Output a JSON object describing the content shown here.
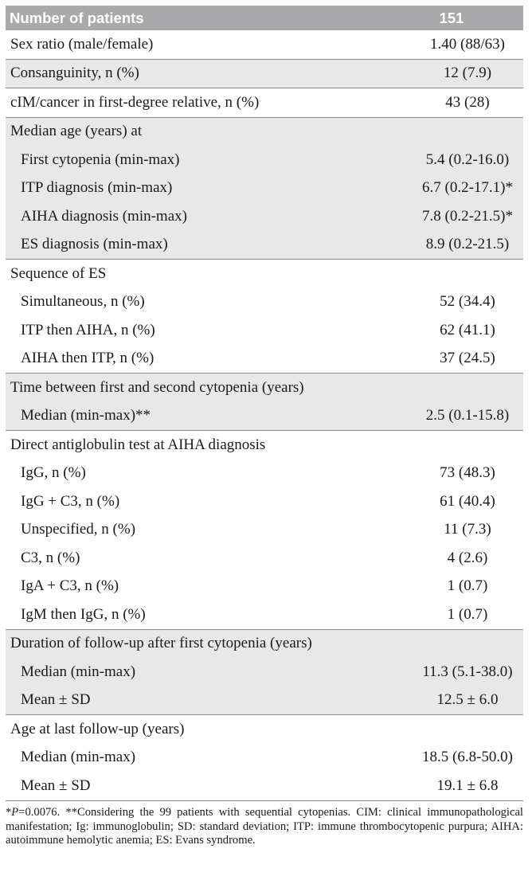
{
  "header": {
    "label": "Number of patients",
    "value": "151"
  },
  "rows": [
    {
      "label": "Sex ratio (male/female)",
      "value": "1.40 (88/63)"
    },
    {
      "label": "Consanguinity, n (%)",
      "value": "12 (7.9)"
    },
    {
      "label": "cIM/cancer in first-degree relative, n (%)",
      "value": "43 (28)"
    },
    {
      "label": "Median age (years) at",
      "value": ""
    },
    {
      "label": "First cytopenia (min-max)",
      "value": "5.4 (0.2-16.0)"
    },
    {
      "label": "ITP diagnosis (min-max)",
      "value": "6.7 (0.2-17.1)*"
    },
    {
      "label": "AIHA diagnosis (min-max)",
      "value": "7.8 (0.2-21.5)*"
    },
    {
      "label": "ES diagnosis (min-max)",
      "value": "8.9 (0.2-21.5)"
    },
    {
      "label": "Sequence of ES",
      "value": ""
    },
    {
      "label": "Simultaneous, n (%)",
      "value": "52 (34.4)"
    },
    {
      "label": "ITP then AIHA, n (%)",
      "value": "62 (41.1)"
    },
    {
      "label": "AIHA then ITP, n (%)",
      "value": "37 (24.5)"
    },
    {
      "label": "Time between first and second cytopenia (years)",
      "value": ""
    },
    {
      "label": "Median (min-max)**",
      "value": "2.5 (0.1-15.8)"
    },
    {
      "label": "Direct antiglobulin test at AIHA diagnosis",
      "value": ""
    },
    {
      "label": "IgG, n (%)",
      "value": "73 (48.3)"
    },
    {
      "label": "IgG + C3, n (%)",
      "value": "61 (40.4)"
    },
    {
      "label": "Unspecified, n (%)",
      "value": "11 (7.3)"
    },
    {
      "label": "C3, n (%)",
      "value": "4 (2.6)"
    },
    {
      "label": "IgA + C3, n (%)",
      "value": "1 (0.7)"
    },
    {
      "label": "IgM then IgG, n (%)",
      "value": "1 (0.7)"
    },
    {
      "label": "Duration of follow-up after first cytopenia (years)",
      "value": ""
    },
    {
      "label": "Median (min-max)",
      "value": "11.3 (5.1-38.0)"
    },
    {
      "label": "Mean ± SD",
      "value": "12.5 ± 6.0"
    },
    {
      "label": "Age at last follow-up (years)",
      "value": ""
    },
    {
      "label": "Median (min-max)",
      "value": "18.5 (6.8-50.0)"
    },
    {
      "label": "Mean ± SD",
      "value": "19.1 ± 6.8"
    }
  ],
  "footnote": {
    "p_prefix": "*",
    "p_italic": "P",
    "text": "=0.0076. **Considering the 99 patients with sequential cytopenias. CIM: clinical immunopathological manifestation; Ig: immunoglobulin; SD: standard deviation; ITP: immune thrombocytopenic purpura; AIHA: autoimmune hemolytic anemia; ES: Evans syndrome."
  },
  "colors": {
    "header_bg": "#a9a9ab",
    "shade_bg": "#e8e8e8",
    "rule": "#8a8a8a"
  }
}
